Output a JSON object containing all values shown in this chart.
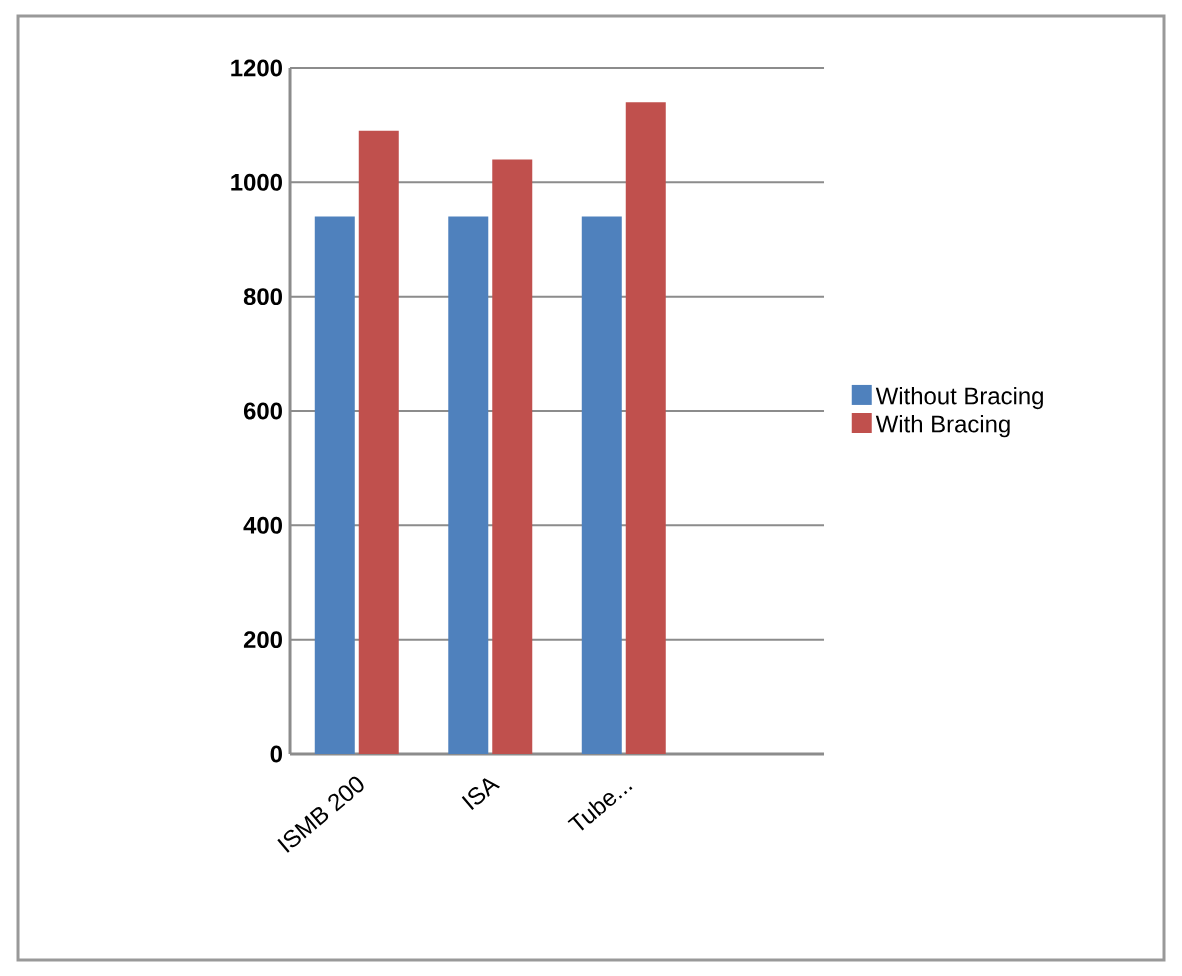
{
  "chart_data": {
    "type": "bar",
    "categories": [
      "ISMB 200",
      "ISA",
      "Tube...",
      null
    ],
    "series": [
      {
        "name": "Without Bracing",
        "color": "#4f81bd",
        "values": [
          940,
          940,
          940,
          null
        ]
      },
      {
        "name": "With Bracing",
        "color": "#c0504d",
        "values": [
          1090,
          1040,
          1140,
          null
        ]
      }
    ],
    "ylim": [
      0,
      1200
    ],
    "yticks": [
      0,
      200,
      400,
      600,
      800,
      1000,
      1200
    ],
    "grid": "y",
    "legend": "right"
  }
}
